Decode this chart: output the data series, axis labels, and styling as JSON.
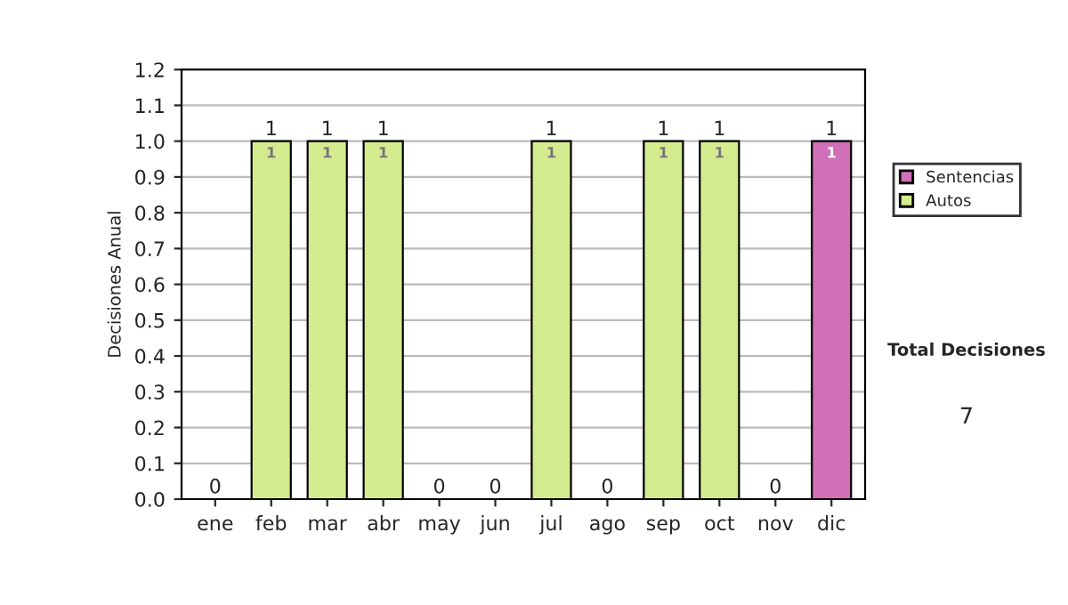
{
  "chart_data": {
    "type": "bar",
    "stacked": true,
    "categories": [
      "ene",
      "feb",
      "mar",
      "abr",
      "may",
      "jun",
      "jul",
      "ago",
      "sep",
      "oct",
      "nov",
      "dic"
    ],
    "series": [
      {
        "name": "Sentencias",
        "color": "#d070b8",
        "values": [
          0,
          0,
          0,
          0,
          0,
          0,
          0,
          0,
          0,
          0,
          0,
          1
        ],
        "value_labels": [
          null,
          null,
          null,
          null,
          null,
          null,
          null,
          null,
          null,
          null,
          null,
          "1"
        ]
      },
      {
        "name": "Autos",
        "color": "#d4ec90",
        "values": [
          0,
          1,
          1,
          1,
          0,
          0,
          1,
          0,
          1,
          1,
          0,
          0
        ],
        "value_labels": [
          null,
          "1",
          "1",
          "1",
          null,
          null,
          "1",
          null,
          "1",
          "1",
          null,
          null
        ]
      }
    ],
    "totals": [
      "0",
      "1",
      "1",
      "1",
      "0",
      "0",
      "1",
      "0",
      "1",
      "1",
      "0",
      "1"
    ],
    "ylabel": "Decisiones Anual",
    "ylim": [
      0,
      1.2
    ],
    "yticks": [
      {
        "value": 0,
        "label": "0.0"
      },
      0.1,
      0.2,
      0.3,
      0.4,
      0.5,
      0.6,
      0.7,
      0.8,
      0.9,
      {
        "value": 1,
        "label": "1.0"
      },
      1.1,
      1.2
    ],
    "grid": "y",
    "legend": "right",
    "annotations": [
      "Total Decisiones",
      "7"
    ]
  }
}
